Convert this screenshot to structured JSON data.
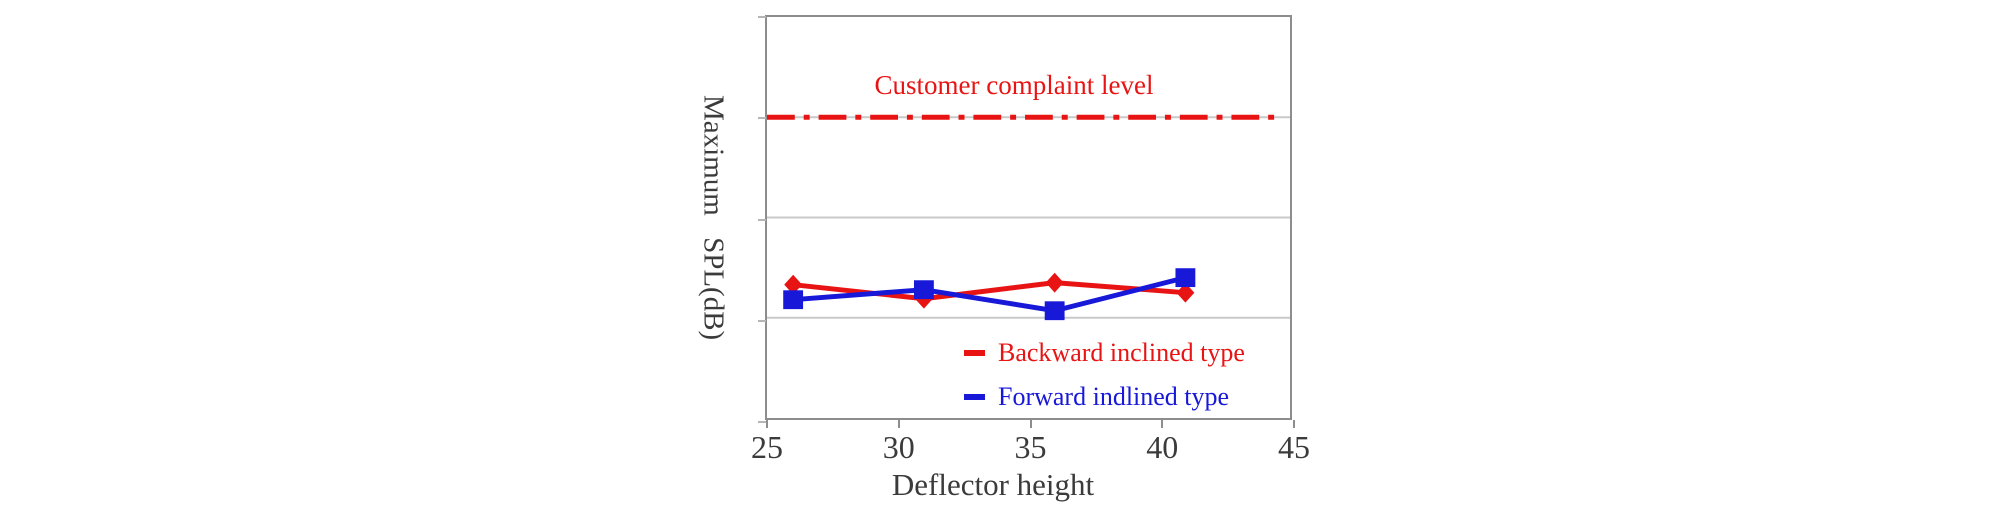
{
  "colors": {
    "red": "#e81414",
    "blue": "#1818d8",
    "grid": "#c9c9c9",
    "axis": "#8d8d8d",
    "text": "#3b3b3b"
  },
  "chart_data": {
    "type": "line",
    "xlabel": "Deflector height",
    "ylabel": "Maximum SPL(dB)",
    "x": [
      26,
      31,
      36,
      41
    ],
    "xlim": [
      25,
      45
    ],
    "x_ticks": [
      25,
      30,
      35,
      40,
      45
    ],
    "ylim": [
      0,
      4
    ],
    "y_tick_labels": [],
    "grid": "horizontal",
    "y_unit_note": "y axis has no numeric labels; values estimated in gridline units (1 unit = 1 horizontal grid division)",
    "series": [
      {
        "name": "Backward inclined type",
        "color": "#e81414",
        "marker": "diamond",
        "values": [
          1.33,
          1.19,
          1.35,
          1.25
        ]
      },
      {
        "name": "Forward indlined type",
        "color": "#1818d8",
        "marker": "square",
        "values": [
          1.18,
          1.28,
          1.07,
          1.4
        ]
      }
    ],
    "reference_line": {
      "label": "Customer complaint level",
      "value": 3.0,
      "color": "#e81414",
      "style": "dash-dot"
    },
    "legend_position": "inside-bottom-right"
  }
}
